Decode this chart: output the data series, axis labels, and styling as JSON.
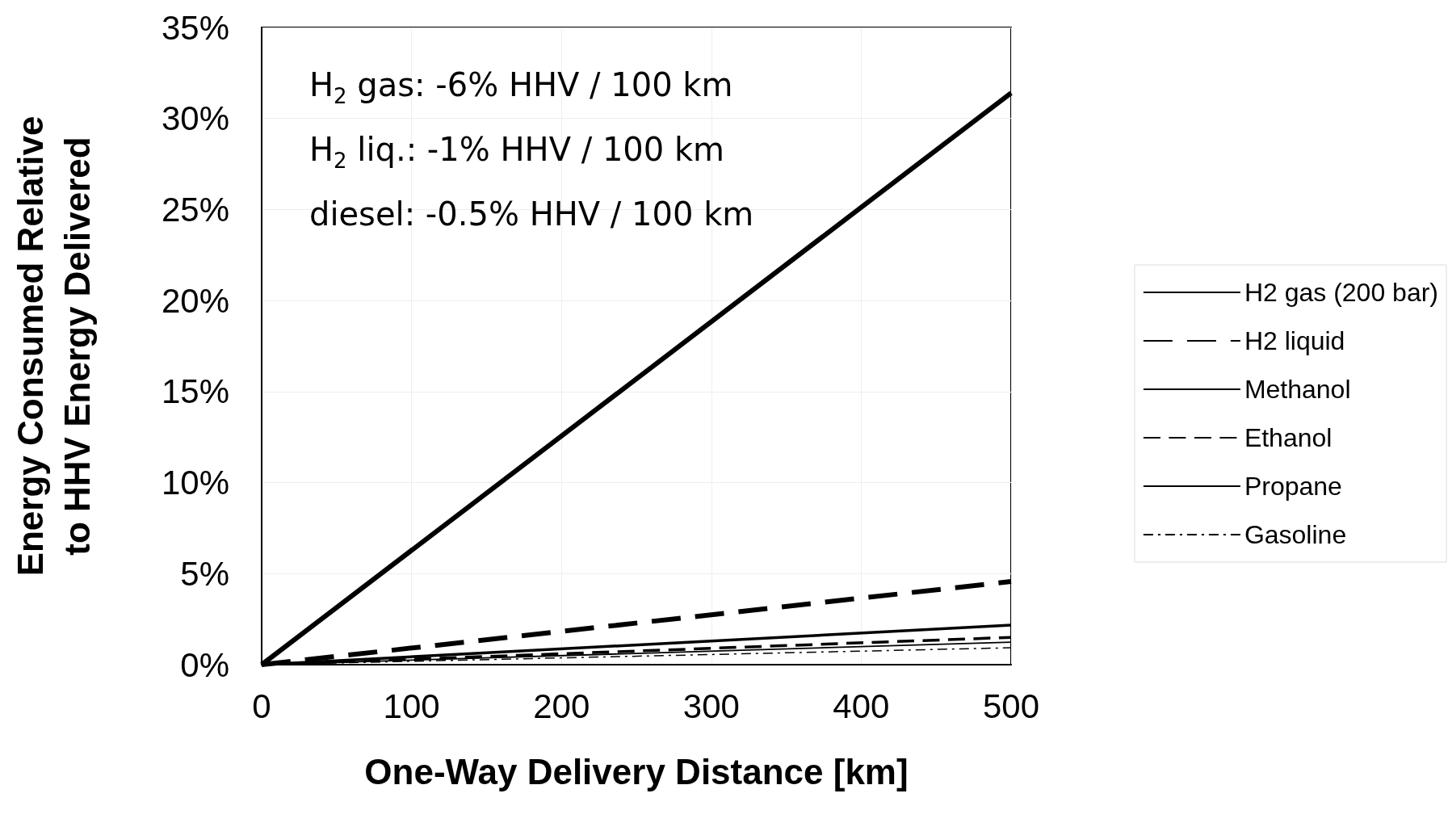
{
  "chart_data": {
    "type": "line",
    "xlabel": "One-Way Delivery Distance [km]",
    "ylabel": "Energy Consumed Relative\nto HHV Energy Delivered",
    "x": [
      0,
      500
    ],
    "xlim": [
      0,
      500
    ],
    "xticks": [
      0,
      100,
      200,
      300,
      400,
      500
    ],
    "ylim": [
      0,
      35
    ],
    "yticks": [
      {
        "value": 0,
        "label": "0%"
      },
      {
        "value": 5,
        "label": "5%"
      },
      {
        "value": 10,
        "label": "10%"
      },
      {
        "value": 15,
        "label": "15%"
      },
      {
        "value": 20,
        "label": "20%"
      },
      {
        "value": 25,
        "label": "25%"
      },
      {
        "value": 30,
        "label": "30%"
      },
      {
        "value": 35,
        "label": "35%"
      }
    ],
    "grid": true,
    "legend": "right",
    "marker": "none",
    "annotations": [
      "H$_{2}$ gas: -6% HHV / 100 km",
      "H$_{2}$ liq.: -1% HHV / 100 km",
      "diesel: -0.5% HHV / 100 km"
    ],
    "series": [
      {
        "name": "H2 gas (200 bar)",
        "color": "#000000",
        "line_style": "solid",
        "values": [
          0,
          31.4
        ]
      },
      {
        "name": "H2 liquid",
        "color": "#000000",
        "line_style": "dashed",
        "values": [
          0,
          4.57
        ]
      },
      {
        "name": "Methanol",
        "color": "#000000",
        "line_style": "solid",
        "values": [
          0,
          2.17
        ]
      },
      {
        "name": "Ethanol",
        "color": "#000000",
        "line_style": "dashed",
        "values": [
          0,
          1.5
        ]
      },
      {
        "name": "Propane",
        "color": "#000000",
        "line_style": "solid",
        "values": [
          0,
          1.24
        ]
      },
      {
        "name": "Gasoline",
        "color": "#000000",
        "line_style": "dotted",
        "values": [
          0,
          0.93
        ]
      }
    ]
  }
}
